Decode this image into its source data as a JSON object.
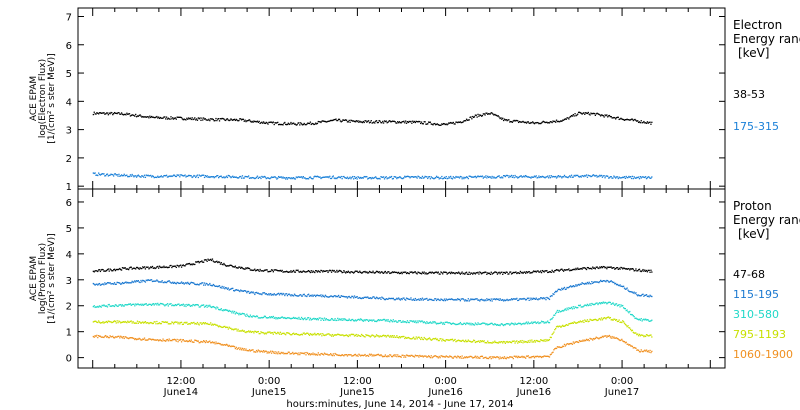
{
  "figure": {
    "xlabel": "hours:minutes, June 14, 2014 - June 17, 2014",
    "xticks": [
      {
        "t": 12,
        "top": "12:00",
        "bottom": "June14"
      },
      {
        "t": 24,
        "top": "0:00",
        "bottom": "June15"
      },
      {
        "t": 36,
        "top": "12:00",
        "bottom": "June15"
      },
      {
        "t": 48,
        "top": "0:00",
        "bottom": "June16"
      },
      {
        "t": 60,
        "top": "12:00",
        "bottom": "June16"
      },
      {
        "t": 72,
        "top": "0:00",
        "bottom": "June17"
      }
    ]
  },
  "chart_data": [
    {
      "type": "scatter",
      "panel": "electron",
      "ylabel_lines": [
        "ACE EPAM",
        "log(Electron Flux)",
        "[1/(cm² s ster MeV)]"
      ],
      "legend_title": [
        "Electron",
        "Energy ranges",
        "[keV]"
      ],
      "ylim": [
        0.9,
        7.3
      ],
      "yticks": [
        1,
        2,
        3,
        4,
        5,
        6,
        7
      ],
      "series": [
        {
          "name": "38-53",
          "color": "#000000",
          "points": [
            [
              0,
              3.6
            ],
            [
              4,
              3.58
            ],
            [
              8,
              3.45
            ],
            [
              12,
              3.42
            ],
            [
              16,
              3.38
            ],
            [
              20,
              3.36
            ],
            [
              24,
              3.25
            ],
            [
              28,
              3.22
            ],
            [
              30,
              3.25
            ],
            [
              33,
              3.35
            ],
            [
              36,
              3.3
            ],
            [
              40,
              3.3
            ],
            [
              44,
              3.28
            ],
            [
              48,
              3.2
            ],
            [
              50,
              3.3
            ],
            [
              52,
              3.5
            ],
            [
              54,
              3.6
            ],
            [
              56,
              3.35
            ],
            [
              60,
              3.25
            ],
            [
              64,
              3.35
            ],
            [
              66,
              3.6
            ],
            [
              68,
              3.58
            ],
            [
              72,
              3.4
            ],
            [
              76,
              3.25
            ]
          ]
        },
        {
          "name": "175-315",
          "color": "#1a80d8",
          "points": [
            [
              0,
              1.45
            ],
            [
              4,
              1.4
            ],
            [
              8,
              1.37
            ],
            [
              12,
              1.38
            ],
            [
              16,
              1.37
            ],
            [
              20,
              1.35
            ],
            [
              24,
              1.32
            ],
            [
              28,
              1.32
            ],
            [
              32,
              1.34
            ],
            [
              36,
              1.32
            ],
            [
              40,
              1.32
            ],
            [
              44,
              1.34
            ],
            [
              48,
              1.32
            ],
            [
              52,
              1.34
            ],
            [
              56,
              1.36
            ],
            [
              60,
              1.35
            ],
            [
              64,
              1.36
            ],
            [
              68,
              1.38
            ],
            [
              72,
              1.33
            ],
            [
              76,
              1.32
            ]
          ]
        }
      ]
    },
    {
      "type": "scatter",
      "panel": "proton",
      "ylabel_lines": [
        "ACE EPAM",
        "log(Proton Flux)",
        "[1/(cm² s ster MeV)]"
      ],
      "legend_title": [
        "Proton",
        "Energy ranges",
        "[keV]"
      ],
      "ylim": [
        -0.4,
        6.5
      ],
      "yticks": [
        0,
        1,
        2,
        3,
        4,
        5,
        6
      ],
      "series": [
        {
          "name": "47-68",
          "color": "#000000",
          "points": [
            [
              0,
              3.35
            ],
            [
              4,
              3.45
            ],
            [
              8,
              3.5
            ],
            [
              12,
              3.55
            ],
            [
              16,
              3.8
            ],
            [
              18,
              3.6
            ],
            [
              22,
              3.4
            ],
            [
              26,
              3.35
            ],
            [
              32,
              3.35
            ],
            [
              40,
              3.3
            ],
            [
              48,
              3.28
            ],
            [
              56,
              3.28
            ],
            [
              62,
              3.35
            ],
            [
              66,
              3.45
            ],
            [
              70,
              3.5
            ],
            [
              74,
              3.4
            ],
            [
              76,
              3.35
            ]
          ]
        },
        {
          "name": "115-195",
          "color": "#1a78d0",
          "points": [
            [
              0,
              2.85
            ],
            [
              4,
              2.9
            ],
            [
              8,
              3.0
            ],
            [
              12,
              2.9
            ],
            [
              16,
              2.85
            ],
            [
              18,
              2.7
            ],
            [
              20,
              2.6
            ],
            [
              22,
              2.5
            ],
            [
              26,
              2.45
            ],
            [
              32,
              2.4
            ],
            [
              40,
              2.3
            ],
            [
              48,
              2.25
            ],
            [
              56,
              2.25
            ],
            [
              62,
              2.3
            ],
            [
              63,
              2.6
            ],
            [
              66,
              2.85
            ],
            [
              70,
              3.0
            ],
            [
              72,
              2.75
            ],
            [
              74,
              2.45
            ],
            [
              76,
              2.4
            ]
          ]
        },
        {
          "name": "310-580",
          "color": "#20d8c8",
          "points": [
            [
              0,
              2.0
            ],
            [
              4,
              2.05
            ],
            [
              8,
              2.08
            ],
            [
              12,
              2.05
            ],
            [
              16,
              2.0
            ],
            [
              18,
              1.85
            ],
            [
              20,
              1.7
            ],
            [
              22,
              1.6
            ],
            [
              26,
              1.55
            ],
            [
              32,
              1.5
            ],
            [
              40,
              1.45
            ],
            [
              48,
              1.35
            ],
            [
              56,
              1.3
            ],
            [
              62,
              1.4
            ],
            [
              63,
              1.8
            ],
            [
              66,
              2.0
            ],
            [
              70,
              2.15
            ],
            [
              72,
              2.0
            ],
            [
              74,
              1.5
            ],
            [
              76,
              1.45
            ]
          ]
        },
        {
          "name": "795-1193",
          "color": "#c8e000",
          "points": [
            [
              0,
              1.4
            ],
            [
              4,
              1.4
            ],
            [
              8,
              1.38
            ],
            [
              12,
              1.35
            ],
            [
              16,
              1.32
            ],
            [
              18,
              1.2
            ],
            [
              20,
              1.05
            ],
            [
              22,
              1.0
            ],
            [
              26,
              0.95
            ],
            [
              32,
              0.9
            ],
            [
              40,
              0.85
            ],
            [
              48,
              0.7
            ],
            [
              56,
              0.6
            ],
            [
              62,
              0.7
            ],
            [
              63,
              1.2
            ],
            [
              66,
              1.4
            ],
            [
              70,
              1.55
            ],
            [
              72,
              1.4
            ],
            [
              74,
              0.9
            ],
            [
              76,
              0.85
            ]
          ]
        },
        {
          "name": "1060-1900",
          "color": "#f09020",
          "points": [
            [
              0,
              0.85
            ],
            [
              4,
              0.8
            ],
            [
              8,
              0.72
            ],
            [
              12,
              0.68
            ],
            [
              16,
              0.62
            ],
            [
              18,
              0.5
            ],
            [
              20,
              0.35
            ],
            [
              22,
              0.28
            ],
            [
              26,
              0.2
            ],
            [
              32,
              0.15
            ],
            [
              40,
              0.1
            ],
            [
              48,
              0.05
            ],
            [
              56,
              0.02
            ],
            [
              62,
              0.08
            ],
            [
              63,
              0.4
            ],
            [
              66,
              0.65
            ],
            [
              70,
              0.85
            ],
            [
              72,
              0.7
            ],
            [
              74,
              0.3
            ],
            [
              76,
              0.25
            ]
          ]
        }
      ]
    }
  ]
}
